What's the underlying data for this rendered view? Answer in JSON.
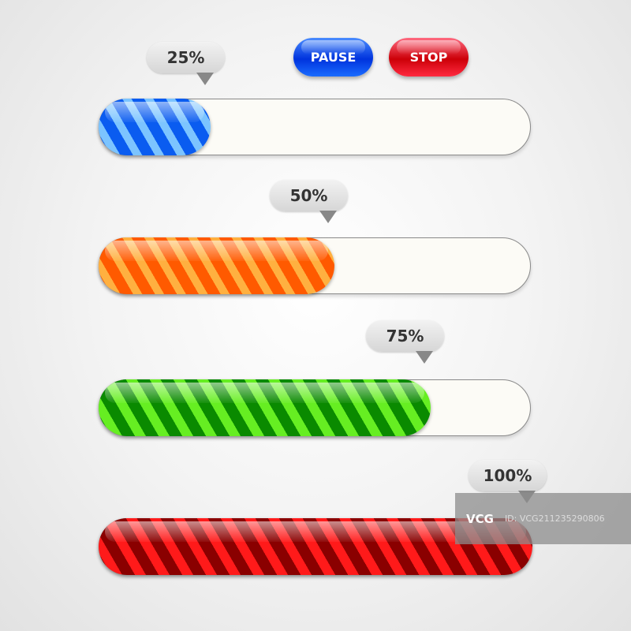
{
  "controls": {
    "pause_label": "PAUSE",
    "stop_label": "STOP",
    "pause_color": "#0033dd",
    "stop_color": "#cc0008"
  },
  "bars": [
    {
      "label": "25%",
      "progress": 25,
      "color": "blue"
    },
    {
      "label": "50%",
      "progress": 50,
      "color": "orange"
    },
    {
      "label": "75%",
      "progress": 75,
      "color": "green"
    },
    {
      "label": "100%",
      "progress": 100,
      "color": "red"
    }
  ],
  "watermark": {
    "logo": "VCG",
    "id_text": "ID: VCG211235290806"
  }
}
